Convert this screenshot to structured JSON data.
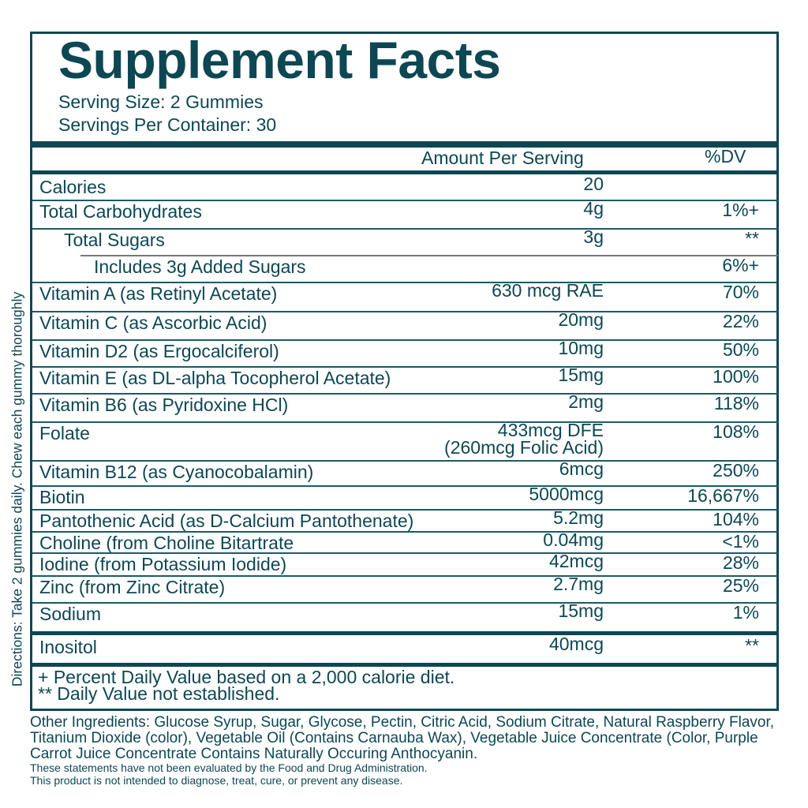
{
  "header": {
    "title": "Supplement Facts",
    "serving_size": "Serving Size: 2 Gummies",
    "servings_per_container": "Servings Per Container: 30"
  },
  "columns": {
    "amount": "Amount Per Serving",
    "dv": "%DV"
  },
  "rows": [
    {
      "name": "Calories",
      "amount": "20",
      "dv": ""
    },
    {
      "name": "Total Carbohydrates",
      "amount": "4g",
      "dv": "1%+"
    },
    {
      "name": "Total Sugars",
      "amount": "3g",
      "dv": "**"
    },
    {
      "name": "Includes 3g Added Sugars",
      "amount": "",
      "dv": "6%+"
    },
    {
      "name": "Vitamin A (as Retinyl Acetate)",
      "amount": "630 mcg RAE",
      "dv": "70%"
    },
    {
      "name": "Vitamin C (as Ascorbic Acid)",
      "amount": "20mg",
      "dv": "22%"
    },
    {
      "name": "Vitamin D2 (as Ergocalciferol)",
      "amount": "10mg",
      "dv": "50%"
    },
    {
      "name": "Vitamin E (as DL-alpha Tocopherol Acetate)",
      "amount": "15mg",
      "dv": "100%"
    },
    {
      "name": "Vitamin B6 (as Pyridoxine HCl)",
      "amount": "2mg",
      "dv": "118%"
    },
    {
      "name": "Folate",
      "amount": "433mcg DFE",
      "amount2": "(260mcg Folic Acid)",
      "dv": "108%"
    },
    {
      "name": "Vitamin B12 (as Cyanocobalamin)",
      "amount": "6mcg",
      "dv": "250%"
    },
    {
      "name": "Biotin",
      "amount": "5000mcg",
      "dv": "16,667%"
    },
    {
      "name": "Pantothenic Acid (as D-Calcium Pantothenate)",
      "amount": "5.2mg",
      "dv": "104%"
    },
    {
      "name": "Choline (from Choline Bitartrate",
      "amount": "0.04mg",
      "dv": "<1%"
    },
    {
      "name": "Iodine (from Potassium Iodide)",
      "amount": "42mcg",
      "dv": "28%"
    },
    {
      "name": "Zinc (from Zinc Citrate)",
      "amount": "2.7mg",
      "dv": "25%"
    },
    {
      "name": "Sodium",
      "amount": "15mg",
      "dv": "1%"
    },
    {
      "name": "Inositol",
      "amount": "40mcg",
      "dv": "**"
    }
  ],
  "footnotes": [
    "+ Percent Daily Value based on a 2,000 calorie diet.",
    "** Daily Value not established."
  ],
  "directions": "Directions: Take 2 gummies daily. Chew each gummy thoroughly",
  "other_ingredients": "Other Ingredients: Glucose Syrup, Sugar, Glycose, Pectin, Citric Acid, Sodium Citrate, Natural Raspberry Flavor, Titanium Dioxide (color), Vegetable Oil (Contains Carnauba Wax), Vegetable Juice Concentrate (Color, Purple Carrot Juice Concentrate Contains Naturally Occuring Anthocyanin.",
  "disclaimer": [
    "These statements have not been evaluated by the Food and Drug Administration.",
    "This product is not intended to diagnose, treat, cure, or prevent any disease."
  ],
  "colors": {
    "ink": "#0d4753"
  }
}
